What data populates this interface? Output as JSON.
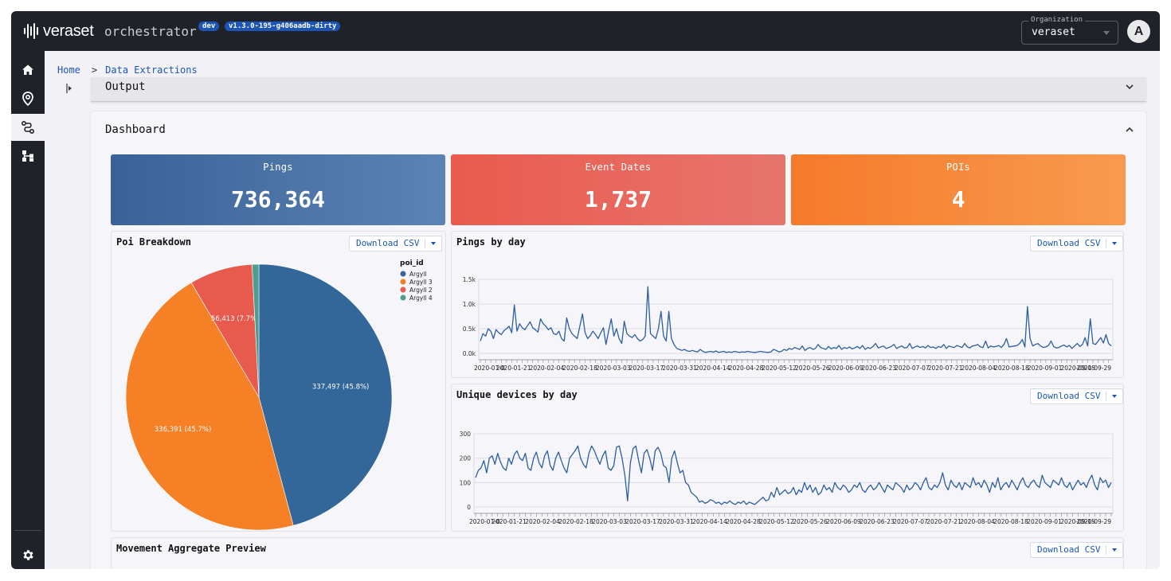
{
  "header": {
    "brand": "veraset",
    "app_name": "orchestrator",
    "env_badge": "dev",
    "version_badge": "v1.3.0-195-g406aadb-dirty",
    "org_label": "Organization",
    "org_value": "veraset",
    "avatar_initial": "A"
  },
  "sidebar": {
    "items": [
      "home-icon",
      "location-pin-icon",
      "route-icon",
      "hierarchy-icon"
    ],
    "bottom": "gear-icon"
  },
  "breadcrumb": {
    "home": "Home",
    "separator": ">",
    "current": "Data Extractions"
  },
  "output_section": {
    "title": "Output"
  },
  "dashboard": {
    "title": "Dashboard",
    "download_label": "Download CSV",
    "kpis": [
      {
        "label": "Pings",
        "value": "736,364",
        "color": "#3f6aa0"
      },
      {
        "label": "Event Dates",
        "value": "1,737",
        "color": "#e8594e"
      },
      {
        "label": "POIs",
        "value": "4",
        "color": "#f57f2b"
      }
    ],
    "movement_title": "Movement Aggregate Preview"
  },
  "chart_data": [
    {
      "type": "pie",
      "title": "Poi Breakdown",
      "legend_title": "poi_id",
      "labels": [
        "Argyll",
        "Argyll 3",
        "Argyll 2",
        "Argyll 4"
      ],
      "values": [
        337497,
        336391,
        56413,
        6063
      ],
      "value_labels": [
        "337,497 (45.8%)",
        "336,391 (45.7%)",
        "56,413 (7.7%)",
        ""
      ],
      "colors": [
        "#336699",
        "#f58026",
        "#e8594e",
        "#4c9d92"
      ]
    },
    {
      "type": "line",
      "title": "Pings by day",
      "color": "#2c5ea0",
      "y_ticks": [
        "1.5k",
        "1.0k",
        "0.5k",
        "0.0k"
      ],
      "ylim": [
        0,
        1500
      ],
      "x_ticks": [
        "2020-01-07",
        "2020-01-21",
        "2020-02-04",
        "2020-02-18",
        "2020-03-03",
        "2020-03-17",
        "2020-03-31",
        "2020-04-14",
        "2020-04-28",
        "2020-05-12",
        "2020-05-26",
        "2020-06-09",
        "2020-06-23",
        "2020-07-07",
        "2020-07-21",
        "2020-08-04",
        "2020-08-18",
        "2020-09-01",
        "2020-09-15",
        "2020-09-29"
      ],
      "x_tick_labels": [
        "2020-01-0",
        "2020-01-21",
        "2020-02-04",
        "2020-02-18",
        "2020-03-03",
        "2020-03-17",
        "2020-03-31",
        "2020-04-14",
        "2020-04-28",
        "2020-05-12",
        "2020-05-26",
        "2020-06-09",
        "2020-06-23",
        "2020-07-07",
        "2020-07-21",
        "2020-08-04",
        "2020-08-18",
        "2020-09-01",
        "2020-09-15",
        "2020-09-29"
      ],
      "values": [
        250,
        400,
        350,
        500,
        450,
        300,
        480,
        420,
        380,
        460,
        500,
        550,
        420,
        980,
        450,
        600,
        520,
        480,
        560,
        640,
        520,
        480,
        430,
        700,
        600,
        550,
        480,
        520,
        400,
        380,
        450,
        300,
        250,
        720,
        500,
        400,
        350,
        300,
        550,
        800,
        420,
        300,
        360,
        450,
        380,
        300,
        420,
        520,
        180,
        450,
        700,
        350,
        500,
        300,
        200,
        650,
        400,
        350,
        320,
        380,
        300,
        250,
        280,
        350,
        1350,
        400,
        350,
        300,
        500,
        850,
        350,
        250,
        850,
        300,
        180,
        100,
        80,
        60,
        80,
        50,
        40,
        60,
        40,
        30,
        80,
        40,
        20,
        30,
        40,
        25,
        50,
        20,
        30,
        40,
        20,
        30,
        20,
        40,
        30,
        20,
        30,
        25,
        40,
        30,
        25,
        20,
        30,
        40,
        30,
        25,
        20,
        30,
        80,
        60,
        30,
        40,
        80,
        60,
        100,
        80,
        120,
        100,
        80,
        150,
        60,
        100,
        120,
        80,
        100,
        180,
        120,
        100,
        80,
        140,
        90,
        120,
        100,
        160,
        80,
        120,
        100,
        130,
        90,
        110,
        140,
        100,
        160,
        80,
        120,
        100,
        140,
        200,
        110,
        130,
        150,
        100,
        120,
        140,
        180,
        100,
        130,
        150,
        110,
        120,
        200,
        100,
        130,
        150,
        120,
        140,
        110,
        160,
        120,
        130,
        100,
        140,
        120,
        180,
        100,
        150,
        130,
        120,
        160,
        140,
        120,
        200,
        130,
        110,
        150,
        160,
        180,
        130,
        120,
        250,
        110,
        150,
        130,
        140,
        160,
        120,
        180,
        300,
        130,
        140,
        150,
        160,
        200,
        280,
        130,
        950,
        300,
        150,
        180,
        200,
        150,
        120,
        130,
        160,
        250,
        140,
        110,
        120,
        150,
        170,
        130,
        160,
        100,
        150,
        200,
        140,
        180,
        320,
        150,
        700,
        200,
        180,
        250,
        320,
        210,
        380,
        200,
        150
      ]
    },
    {
      "type": "line",
      "title": "Unique devices by day",
      "color": "#2c5ea0",
      "y_ticks": [
        "300",
        "200",
        "100",
        "0"
      ],
      "ylim": [
        0,
        300
      ],
      "x_ticks": [
        "2020-01-07",
        "2020-01-21",
        "2020-02-04",
        "2020-02-18",
        "2020-03-03",
        "2020-03-17",
        "2020-03-31",
        "2020-04-14",
        "2020-04-28",
        "2020-05-12",
        "2020-05-26",
        "2020-06-09",
        "2020-06-23",
        "2020-07-07",
        "2020-07-21",
        "2020-08-04",
        "2020-08-18",
        "2020-09-01",
        "2020-09-15",
        "2020-09-29"
      ],
      "x_tick_labels": [
        "2020-01-0",
        "2020-01-21",
        "2020-02-04",
        "2020-02-18",
        "2020-03-03",
        "2020-03-17",
        "2020-03-31",
        "2020-04-14",
        "2020-04-28",
        "2020-05-12",
        "2020-05-26",
        "2020-06-09",
        "2020-06-23",
        "2020-07-07",
        "2020-07-21",
        "2020-08-04",
        "2020-08-18",
        "2020-09-01",
        "2020-09-15",
        "2020-09-29"
      ],
      "values": [
        120,
        150,
        160,
        190,
        140,
        200,
        210,
        175,
        220,
        185,
        160,
        150,
        200,
        175,
        215,
        230,
        200,
        190,
        220,
        160,
        150,
        200,
        225,
        180,
        160,
        210,
        230,
        170,
        150,
        200,
        225,
        190,
        160,
        140,
        200,
        215,
        230,
        250,
        200,
        175,
        160,
        220,
        250,
        230,
        200,
        175,
        210,
        230,
        160,
        150,
        170,
        245,
        250,
        200,
        130,
        25,
        180,
        240,
        250,
        190,
        140,
        220,
        235,
        200,
        150,
        230,
        245,
        220,
        170,
        160,
        100,
        200,
        230,
        180,
        140,
        150,
        100,
        90,
        60,
        50,
        40,
        20,
        25,
        15,
        20,
        30,
        25,
        15,
        20,
        10,
        20,
        15,
        25,
        15,
        10,
        20,
        15,
        25,
        10,
        20,
        15,
        10,
        20,
        30,
        40,
        25,
        30,
        60,
        40,
        80,
        50,
        60,
        70,
        55,
        60,
        80,
        50,
        70,
        60,
        100,
        70,
        90,
        60,
        80,
        50,
        60,
        90,
        70,
        80,
        60,
        100,
        80,
        70,
        90,
        80,
        60,
        70,
        90,
        80,
        100,
        70,
        60,
        80,
        90,
        70,
        80,
        100,
        80,
        60,
        90,
        80,
        70,
        100,
        90,
        80,
        60,
        90,
        70,
        80,
        100,
        90,
        70,
        100,
        120,
        80,
        70,
        90,
        80,
        100,
        140,
        90,
        70,
        110,
        90,
        80,
        100,
        70,
        100,
        90,
        80,
        120,
        90,
        100,
        80,
        110,
        90,
        60,
        100,
        80,
        120,
        70,
        90,
        100,
        80,
        110,
        90,
        70,
        100,
        120,
        90,
        80,
        100,
        110,
        90,
        80,
        130,
        100,
        90,
        80,
        110,
        100,
        90,
        120,
        90,
        80,
        100,
        70,
        90,
        110,
        90,
        100,
        80,
        110,
        130,
        90,
        70,
        120,
        100,
        110,
        80,
        100
      ]
    }
  ]
}
